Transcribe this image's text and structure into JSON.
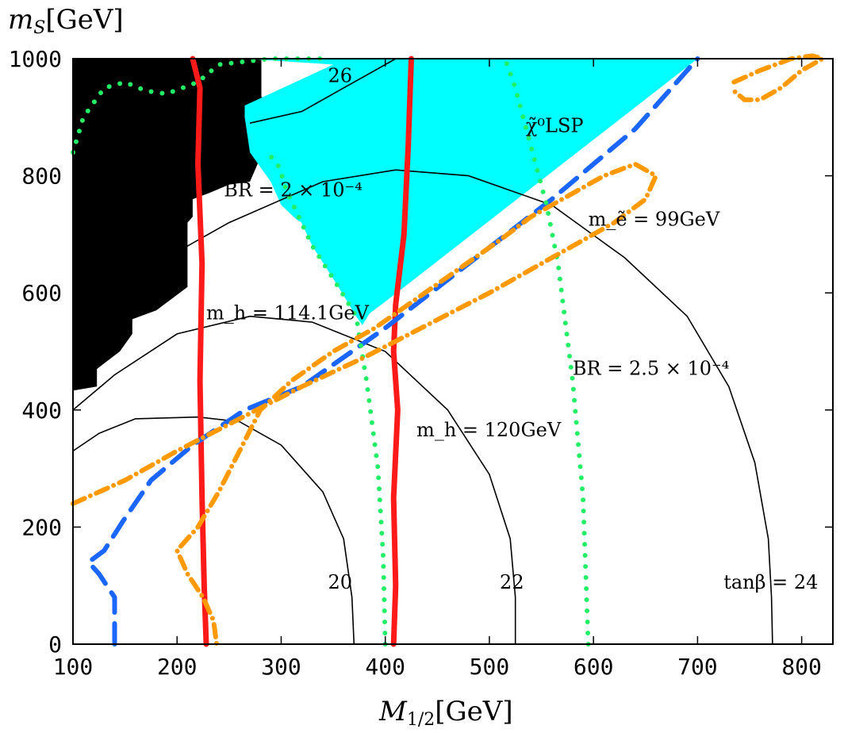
{
  "chart_data": {
    "type": "line",
    "title": "",
    "xlabel": "M_{1/2}[GeV]",
    "ylabel": "m_S[GeV]",
    "xlim": [
      100,
      830
    ],
    "ylim": [
      0,
      1000
    ],
    "x_ticks": [
      100,
      200,
      300,
      400,
      500,
      600,
      700,
      800
    ],
    "y_ticks": [
      0,
      200,
      400,
      600,
      800,
      1000
    ],
    "grid": false,
    "colors": {
      "excluded_region": "#000000",
      "lsp_region": "#00ffff",
      "higgs_mass": "#ff1a1a",
      "selectron_mass": "#1a66ff",
      "br_dotted": "#22ee66",
      "br_dashdot": "#ff9900",
      "tan_beta": "#000000"
    },
    "regions": [
      {
        "name": "excluded",
        "color": "#000000",
        "points": [
          [
            100,
            1000
          ],
          [
            281,
            1000
          ],
          [
            281,
            935
          ],
          [
            290,
            925
          ],
          [
            305,
            920
          ],
          [
            320,
            930
          ],
          [
            340,
            925
          ],
          [
            355,
            910
          ],
          [
            360,
            890
          ],
          [
            340,
            870
          ],
          [
            325,
            865
          ],
          [
            322,
            855
          ],
          [
            305,
            850
          ],
          [
            285,
            840
          ],
          [
            281,
            835
          ],
          [
            270,
            790
          ],
          [
            250,
            785
          ],
          [
            230,
            770
          ],
          [
            215,
            760
          ],
          [
            215,
            730
          ],
          [
            210,
            720
          ],
          [
            210,
            610
          ],
          [
            180,
            570
          ],
          [
            157,
            555
          ],
          [
            157,
            530
          ],
          [
            145,
            500
          ],
          [
            123,
            470
          ],
          [
            123,
            440
          ],
          [
            100,
            433
          ]
        ]
      },
      {
        "name": "LSP",
        "label": "χ̃⁰LSP",
        "color": "#00ffff",
        "points": [
          [
            265,
            1000
          ],
          [
            700,
            1000
          ],
          [
            400,
            585
          ],
          [
            385,
            565
          ],
          [
            378,
            545
          ],
          [
            372,
            560
          ],
          [
            355,
            610
          ],
          [
            330,
            680
          ],
          [
            305,
            775
          ],
          [
            298,
            815
          ],
          [
            287,
            840
          ],
          [
            270,
            895
          ],
          [
            290,
            905
          ],
          [
            310,
            905
          ],
          [
            340,
            900
          ],
          [
            360,
            870
          ],
          [
            365,
            850
          ],
          [
            352,
            820
          ],
          [
            345,
            790
          ],
          [
            350,
            750
          ],
          [
            345,
            730
          ],
          [
            332,
            720
          ],
          [
            320,
            720
          ],
          [
            315,
            725
          ],
          [
            300,
            750
          ],
          [
            290,
            790
          ],
          [
            270,
            840
          ],
          [
            265,
            900
          ],
          [
            265,
            920
          ],
          [
            350,
            990
          ]
        ]
      }
    ],
    "series": [
      {
        "style": "tan_beta",
        "label": "20",
        "points": [
          [
            100,
            330
          ],
          [
            125,
            360
          ],
          [
            160,
            385
          ],
          [
            220,
            388
          ],
          [
            260,
            380
          ],
          [
            300,
            340
          ],
          [
            340,
            260
          ],
          [
            360,
            180
          ],
          [
            368,
            80
          ],
          [
            370,
            0
          ]
        ]
      },
      {
        "style": "tan_beta",
        "label": "22",
        "points": [
          [
            100,
            400
          ],
          [
            140,
            460
          ],
          [
            200,
            530
          ],
          [
            270,
            560
          ],
          [
            330,
            550
          ],
          [
            400,
            500
          ],
          [
            460,
            400
          ],
          [
            500,
            290
          ],
          [
            520,
            180
          ],
          [
            525,
            80
          ],
          [
            525,
            0
          ]
        ]
      },
      {
        "style": "tan_beta",
        "label": "tanβ = 24",
        "points": [
          [
            100,
            530
          ],
          [
            170,
            640
          ],
          [
            250,
            720
          ],
          [
            340,
            790
          ],
          [
            410,
            810
          ],
          [
            480,
            800
          ],
          [
            560,
            750
          ],
          [
            630,
            660
          ],
          [
            690,
            560
          ],
          [
            730,
            440
          ],
          [
            755,
            310
          ],
          [
            768,
            180
          ],
          [
            771,
            80
          ],
          [
            772,
            0
          ]
        ]
      },
      {
        "style": "tan_beta",
        "label": "26",
        "points": [
          [
            270,
            890
          ],
          [
            320,
            910
          ],
          [
            355,
            945
          ],
          [
            390,
            980
          ],
          [
            410,
            1000
          ]
        ]
      },
      {
        "style": "higgs_mass",
        "label": "m_h = 114.1GeV",
        "points": [
          [
            215,
            1000
          ],
          [
            222,
            950
          ],
          [
            220,
            820
          ],
          [
            224,
            650
          ],
          [
            222,
            450
          ],
          [
            224,
            250
          ],
          [
            226,
            100
          ],
          [
            228,
            0
          ]
        ]
      },
      {
        "style": "higgs_mass",
        "label": "m_h = 120GeV",
        "points": [
          [
            425,
            1000
          ],
          [
            422,
            850
          ],
          [
            418,
            700
          ],
          [
            410,
            580
          ],
          [
            408,
            500
          ],
          [
            412,
            400
          ],
          [
            408,
            250
          ],
          [
            410,
            100
          ],
          [
            408,
            0
          ]
        ]
      },
      {
        "style": "selectron_mass",
        "label": "m_ẽ = 99GeV",
        "points": [
          [
            140,
            0
          ],
          [
            140,
            80
          ],
          [
            125,
            120
          ],
          [
            115,
            140
          ],
          [
            130,
            160
          ],
          [
            148,
            210
          ],
          [
            175,
            280
          ],
          [
            215,
            340
          ],
          [
            265,
            400
          ],
          [
            320,
            440
          ],
          [
            400,
            540
          ],
          [
            480,
            650
          ],
          [
            560,
            760
          ],
          [
            640,
            880
          ],
          [
            700,
            1000
          ]
        ]
      },
      {
        "style": "br_dotted",
        "label": "BR = 2 × 10⁻⁴",
        "points": [
          [
            100,
            840
          ],
          [
            110,
            900
          ],
          [
            130,
            950
          ],
          [
            150,
            960
          ],
          [
            170,
            945
          ],
          [
            190,
            940
          ],
          [
            220,
            960
          ],
          [
            240,
            990
          ],
          [
            290,
            1000
          ],
          [
            340,
            1000
          ]
        ]
      },
      {
        "style": "br_dotted",
        "label": "",
        "points": [
          [
            400,
            0
          ],
          [
            398,
            150
          ],
          [
            393,
            300
          ],
          [
            382,
            450
          ],
          [
            372,
            560
          ],
          [
            355,
            610
          ],
          [
            330,
            680
          ],
          [
            305,
            775
          ],
          [
            298,
            815
          ],
          [
            287,
            840
          ]
        ]
      },
      {
        "style": "br_dotted",
        "label": "BR = 2.5 × 10⁻⁴",
        "points": [
          [
            595,
            0
          ],
          [
            590,
            250
          ],
          [
            580,
            450
          ],
          [
            566,
            650
          ],
          [
            555,
            750
          ],
          [
            540,
            850
          ],
          [
            525,
            950
          ],
          [
            515,
            1000
          ]
        ]
      },
      {
        "style": "br_dashdot",
        "label": "",
        "points": [
          [
            100,
            240
          ],
          [
            150,
            280
          ],
          [
            200,
            330
          ],
          [
            260,
            385
          ],
          [
            320,
            440
          ],
          [
            380,
            490
          ],
          [
            440,
            545
          ],
          [
            500,
            600
          ],
          [
            560,
            660
          ],
          [
            620,
            720
          ],
          [
            650,
            760
          ],
          [
            660,
            800
          ],
          [
            640,
            820
          ],
          [
            610,
            800
          ],
          [
            580,
            770
          ],
          [
            540,
            730
          ],
          [
            510,
            690
          ],
          [
            470,
            640
          ],
          [
            430,
            590
          ],
          [
            390,
            540
          ],
          [
            350,
            500
          ],
          [
            310,
            450
          ],
          [
            280,
            400
          ],
          [
            260,
            330
          ],
          [
            240,
            260
          ],
          [
            220,
            200
          ],
          [
            200,
            160
          ],
          [
            210,
            120
          ],
          [
            225,
            80
          ],
          [
            235,
            40
          ],
          [
            238,
            0
          ]
        ]
      },
      {
        "style": "br_dashdot",
        "label": "",
        "points": [
          [
            735,
            960
          ],
          [
            760,
            980
          ],
          [
            790,
            1000
          ],
          [
            810,
            1005
          ],
          [
            820,
            1000
          ],
          [
            800,
            980
          ],
          [
            780,
            950
          ],
          [
            760,
            930
          ],
          [
            745,
            930
          ],
          [
            735,
            945
          ]
        ]
      }
    ],
    "annotations": [
      {
        "text": "BR = 2 × 10⁻⁴",
        "x": 245,
        "y": 765
      },
      {
        "text": "m_h = 114.1GeV",
        "x": 228,
        "y": 555
      },
      {
        "text": "m_h = 120GeV",
        "x": 430,
        "y": 355
      },
      {
        "text": "m_ẽ = 99GeV",
        "x": 595,
        "y": 715
      },
      {
        "text": "BR = 2.5 × 10⁻⁴",
        "x": 580,
        "y": 460
      },
      {
        "text": "χ̃⁰LSP",
        "x": 535,
        "y": 875
      },
      {
        "text": "26",
        "x": 345,
        "y": 960
      },
      {
        "text": "20",
        "x": 345,
        "y": 95
      },
      {
        "text": "22",
        "x": 510,
        "y": 95
      },
      {
        "text": "tanβ = 24",
        "x": 725,
        "y": 95
      }
    ]
  }
}
